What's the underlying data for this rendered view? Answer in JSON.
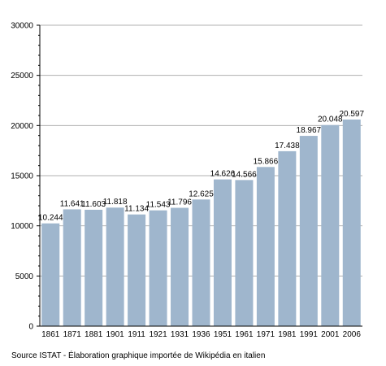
{
  "chart_data": {
    "type": "bar",
    "categories": [
      "1861",
      "1871",
      "1881",
      "1901",
      "1911",
      "1921",
      "1931",
      "1936",
      "1951",
      "1961",
      "1971",
      "1981",
      "1991",
      "2001",
      "2006"
    ],
    "values": [
      10244,
      11641,
      11603,
      11818,
      11134,
      11543,
      11796,
      12625,
      14626,
      14566,
      15866,
      17438,
      18967,
      20048,
      20597
    ],
    "value_labels": [
      "10.244",
      "11.641",
      "11.603",
      "11.818",
      "11.134",
      "11.543",
      "11.796",
      "12.625",
      "14.626",
      "14.566",
      "15.866",
      "17.438",
      "18.967",
      "20.048",
      "20.597"
    ],
    "ylim": [
      0,
      30000
    ],
    "yticks": [
      0,
      5000,
      10000,
      15000,
      20000,
      25000,
      30000
    ],
    "grid": true,
    "bar_color": "#9fb6cd",
    "grid_color": "#b0b0b0"
  },
  "footer": {
    "source": "Source ISTAT - Élaboration graphique importée de Wikipédia en italien"
  }
}
